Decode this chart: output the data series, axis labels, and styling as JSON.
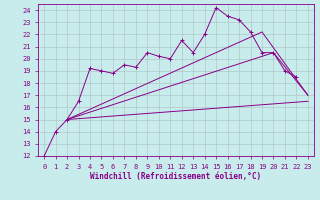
{
  "xlabel": "Windchill (Refroidissement éolien,°C)",
  "xlim": [
    -0.5,
    23.5
  ],
  "ylim": [
    12,
    24.5
  ],
  "yticks": [
    12,
    13,
    14,
    15,
    16,
    17,
    18,
    19,
    20,
    21,
    22,
    23,
    24
  ],
  "xticks": [
    0,
    1,
    2,
    3,
    4,
    5,
    6,
    7,
    8,
    9,
    10,
    11,
    12,
    13,
    14,
    15,
    16,
    17,
    18,
    19,
    20,
    21,
    22,
    23
  ],
  "bg_color": "#c8ecec",
  "line_color": "#880088",
  "grid_color": "#b0c8c8",
  "lines": [
    {
      "x": [
        0,
        1,
        2,
        3,
        4,
        5,
        6,
        7,
        8,
        9,
        10,
        11,
        12,
        13,
        14,
        15,
        16,
        17,
        18,
        19,
        20,
        21,
        22
      ],
      "y": [
        12,
        14,
        15,
        16.5,
        19.2,
        19.0,
        18.8,
        19.5,
        19.3,
        20.5,
        20.2,
        20.0,
        21.5,
        20.5,
        22.0,
        24.2,
        23.5,
        23.2,
        22.2,
        20.5,
        20.5,
        19.0,
        18.5
      ],
      "marker": true
    },
    {
      "x": [
        2,
        23
      ],
      "y": [
        15.0,
        16.5
      ],
      "marker": false
    },
    {
      "x": [
        2,
        20,
        23
      ],
      "y": [
        15.0,
        20.5,
        17.0
      ],
      "marker": false
    },
    {
      "x": [
        2,
        19,
        23
      ],
      "y": [
        15.0,
        22.2,
        17.0
      ],
      "marker": false
    }
  ]
}
